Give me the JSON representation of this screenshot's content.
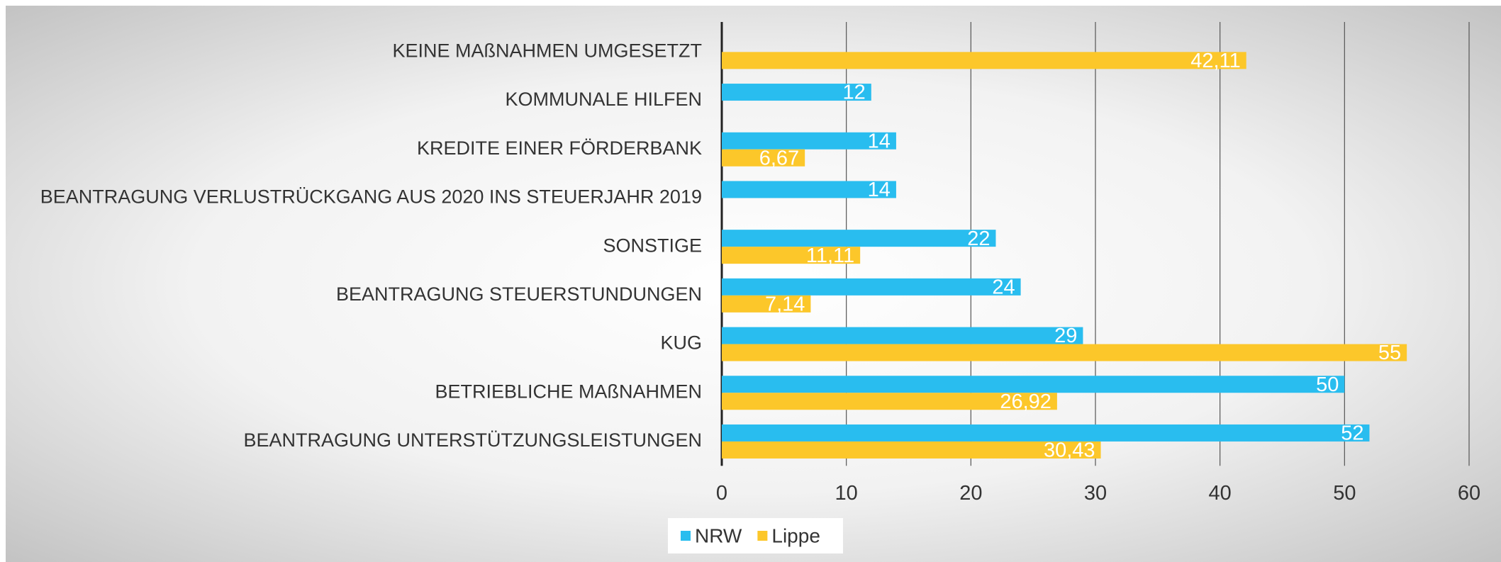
{
  "chart_data": {
    "type": "hbar",
    "categories": [
      "KEINE MAßNAHMEN UMGESETZT",
      "KOMMUNALE HILFEN",
      "KREDITE EINER FÖRDERBANK",
      "BEANTRAGUNG VERLUSTRÜCKGANG AUS 2020 INS STEUERJAHR 2019",
      "SONSTIGE",
      "BEANTRAGUNG STEUERSTUNDUNGEN",
      "KUG",
      "BETRIEBLICHE MAßNAHMEN",
      "BEANTRAGUNG UNTERSTÜTZUNGSLEISTUNGEN"
    ],
    "series": [
      {
        "name": "NRW",
        "color": "#29bdef",
        "values": [
          null,
          12,
          14,
          14,
          22,
          24,
          29,
          50,
          52
        ]
      },
      {
        "name": "Lippe",
        "color": "#fcc72a",
        "values": [
          42.11,
          null,
          6.67,
          null,
          11.11,
          7.14,
          55,
          26.92,
          30.43
        ],
        "value_labels": [
          "42,11",
          null,
          "6,67",
          null,
          "11,11",
          "7,14",
          "55",
          "26,92",
          "30,43"
        ]
      }
    ],
    "xlim": [
      0,
      60
    ],
    "xticks": [
      0,
      10,
      20,
      30,
      40,
      50,
      60
    ],
    "grid": true,
    "legend": "bottom"
  }
}
